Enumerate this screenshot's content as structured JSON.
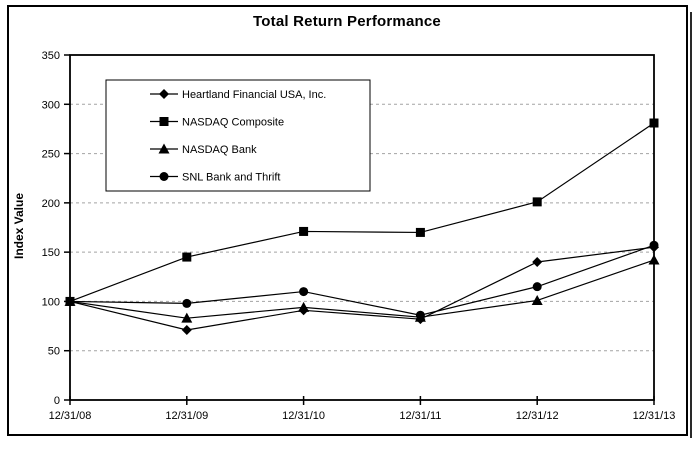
{
  "chart_data": {
    "type": "line",
    "title": "Total Return Performance",
    "xlabel": "",
    "ylabel": "Index Value",
    "ylim": [
      0,
      350
    ],
    "yticks": [
      0,
      50,
      100,
      150,
      200,
      250,
      300,
      350
    ],
    "grid": "horizontal dashed gridlines at each 50-unit interval",
    "legend_position": "upper-left inside plot area, boxed",
    "categories": [
      "12/31/08",
      "12/31/09",
      "12/31/10",
      "12/31/11",
      "12/31/12",
      "12/31/13"
    ],
    "series": [
      {
        "name": "Heartland Financial USA, Inc.",
        "marker": "diamond",
        "values": [
          100,
          71,
          91,
          82,
          140,
          155
        ]
      },
      {
        "name": "NASDAQ Composite",
        "marker": "square",
        "values": [
          100,
          145,
          171,
          170,
          201,
          281
        ]
      },
      {
        "name": "NASDAQ Bank",
        "marker": "triangle",
        "values": [
          100,
          83,
          94,
          84,
          101,
          142
        ]
      },
      {
        "name": "SNL Bank and Thrift",
        "marker": "circle",
        "values": [
          100,
          98,
          110,
          86,
          115,
          157
        ]
      }
    ]
  },
  "colors": {
    "series_line": "#000000",
    "marker_fill": "#000000",
    "gridline": "#a3a3a3",
    "plot_border": "#000000",
    "outer_border": "#000000",
    "background": "#ffffff"
  }
}
